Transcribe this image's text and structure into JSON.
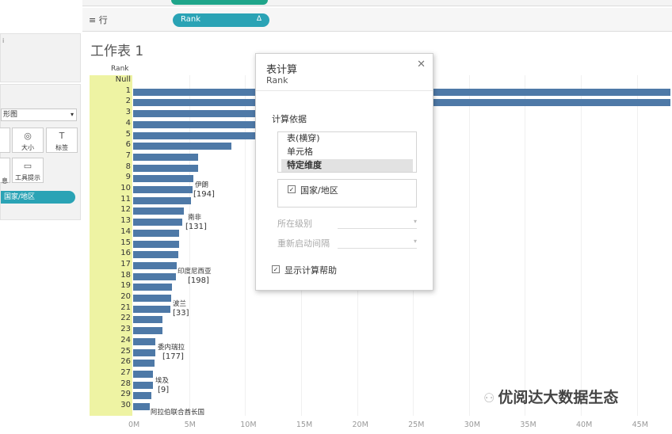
{
  "shelf": {
    "row_icon": "rows-icon",
    "row_label": "行",
    "row_pill": "Rank",
    "row_pill_badge": "Δ"
  },
  "marks_card": {
    "dropdown_value": "形图",
    "size_label": "大小",
    "label_label": "标签",
    "tooltip_label": "工具提示",
    "left_partial_label": "息",
    "field_pill": "国家/地区"
  },
  "worksheet": {
    "title": "工作表 1",
    "rank_header": "Rank",
    "rank_labels": [
      "Null",
      "1",
      "2",
      "3",
      "4",
      "5",
      "6",
      "7",
      "8",
      "9",
      "10",
      "11",
      "12",
      "13",
      "14",
      "15",
      "16",
      "17",
      "18",
      "19",
      "20",
      "21",
      "22",
      "23",
      "24",
      "25",
      "26",
      "27",
      "28",
      "29",
      "30"
    ],
    "countries": [
      {
        "name": "伊朗",
        "count": "[194]"
      },
      {
        "name": "南非",
        "count": "[131]"
      },
      {
        "name": "印度尼西亚",
        "count": "[198]"
      },
      {
        "name": "波兰",
        "count": "[33]"
      },
      {
        "name": "委内瑞拉",
        "count": "[177]"
      },
      {
        "name": "埃及",
        "count": "[9]"
      },
      {
        "name": "阿拉伯联合酋长国",
        "count": ""
      }
    ],
    "x_ticks": [
      "0M",
      "5M",
      "10M",
      "15M",
      "20M",
      "25M",
      "30M",
      "35M",
      "40M",
      "45M"
    ]
  },
  "chart_data": {
    "type": "bar",
    "orientation": "horizontal",
    "categories": [
      "Null",
      "1",
      "2",
      "3",
      "4",
      "5",
      "6",
      "7",
      "8",
      "9",
      "10",
      "11",
      "12",
      "13",
      "14",
      "15",
      "16",
      "17",
      "18",
      "19",
      "20",
      "21",
      "22",
      "23",
      "24",
      "25",
      "26",
      "27",
      "28",
      "29",
      "30"
    ],
    "values": [
      0,
      48,
      48,
      11.2,
      11.2,
      11.2,
      8.8,
      5.8,
      5.8,
      5.4,
      5.3,
      5.2,
      4.5,
      4.4,
      4.1,
      4.1,
      4.0,
      3.9,
      3.8,
      3.5,
      3.4,
      3.3,
      2.6,
      2.6,
      2.0,
      2.0,
      1.9,
      1.8,
      1.8,
      1.6,
      1.5
    ],
    "xlim": [
      0,
      48
    ],
    "ylabel": "Rank",
    "x_ticks": [
      "0M",
      "5M",
      "10M",
      "15M",
      "20M",
      "25M",
      "30M",
      "35M",
      "40M",
      "45M"
    ],
    "colors": {
      "bar": "#4e79a7",
      "rank_highlight": "#eef3a3"
    }
  },
  "dialog": {
    "title": "表计算",
    "subtitle": "Rank",
    "close_icon": "close-icon",
    "section_label": "计算依据",
    "options": [
      "表(横穿)",
      "单元格",
      "特定维度"
    ],
    "selected_option": "特定维度",
    "dimension_checked": true,
    "dimension_label": "国家/地区",
    "level_label": "所在级别",
    "restart_label": "重新启动间隔",
    "show_help_checked": true,
    "show_help_label": "显示计算帮助"
  },
  "watermark": {
    "text": "优阅达大数据生态"
  }
}
